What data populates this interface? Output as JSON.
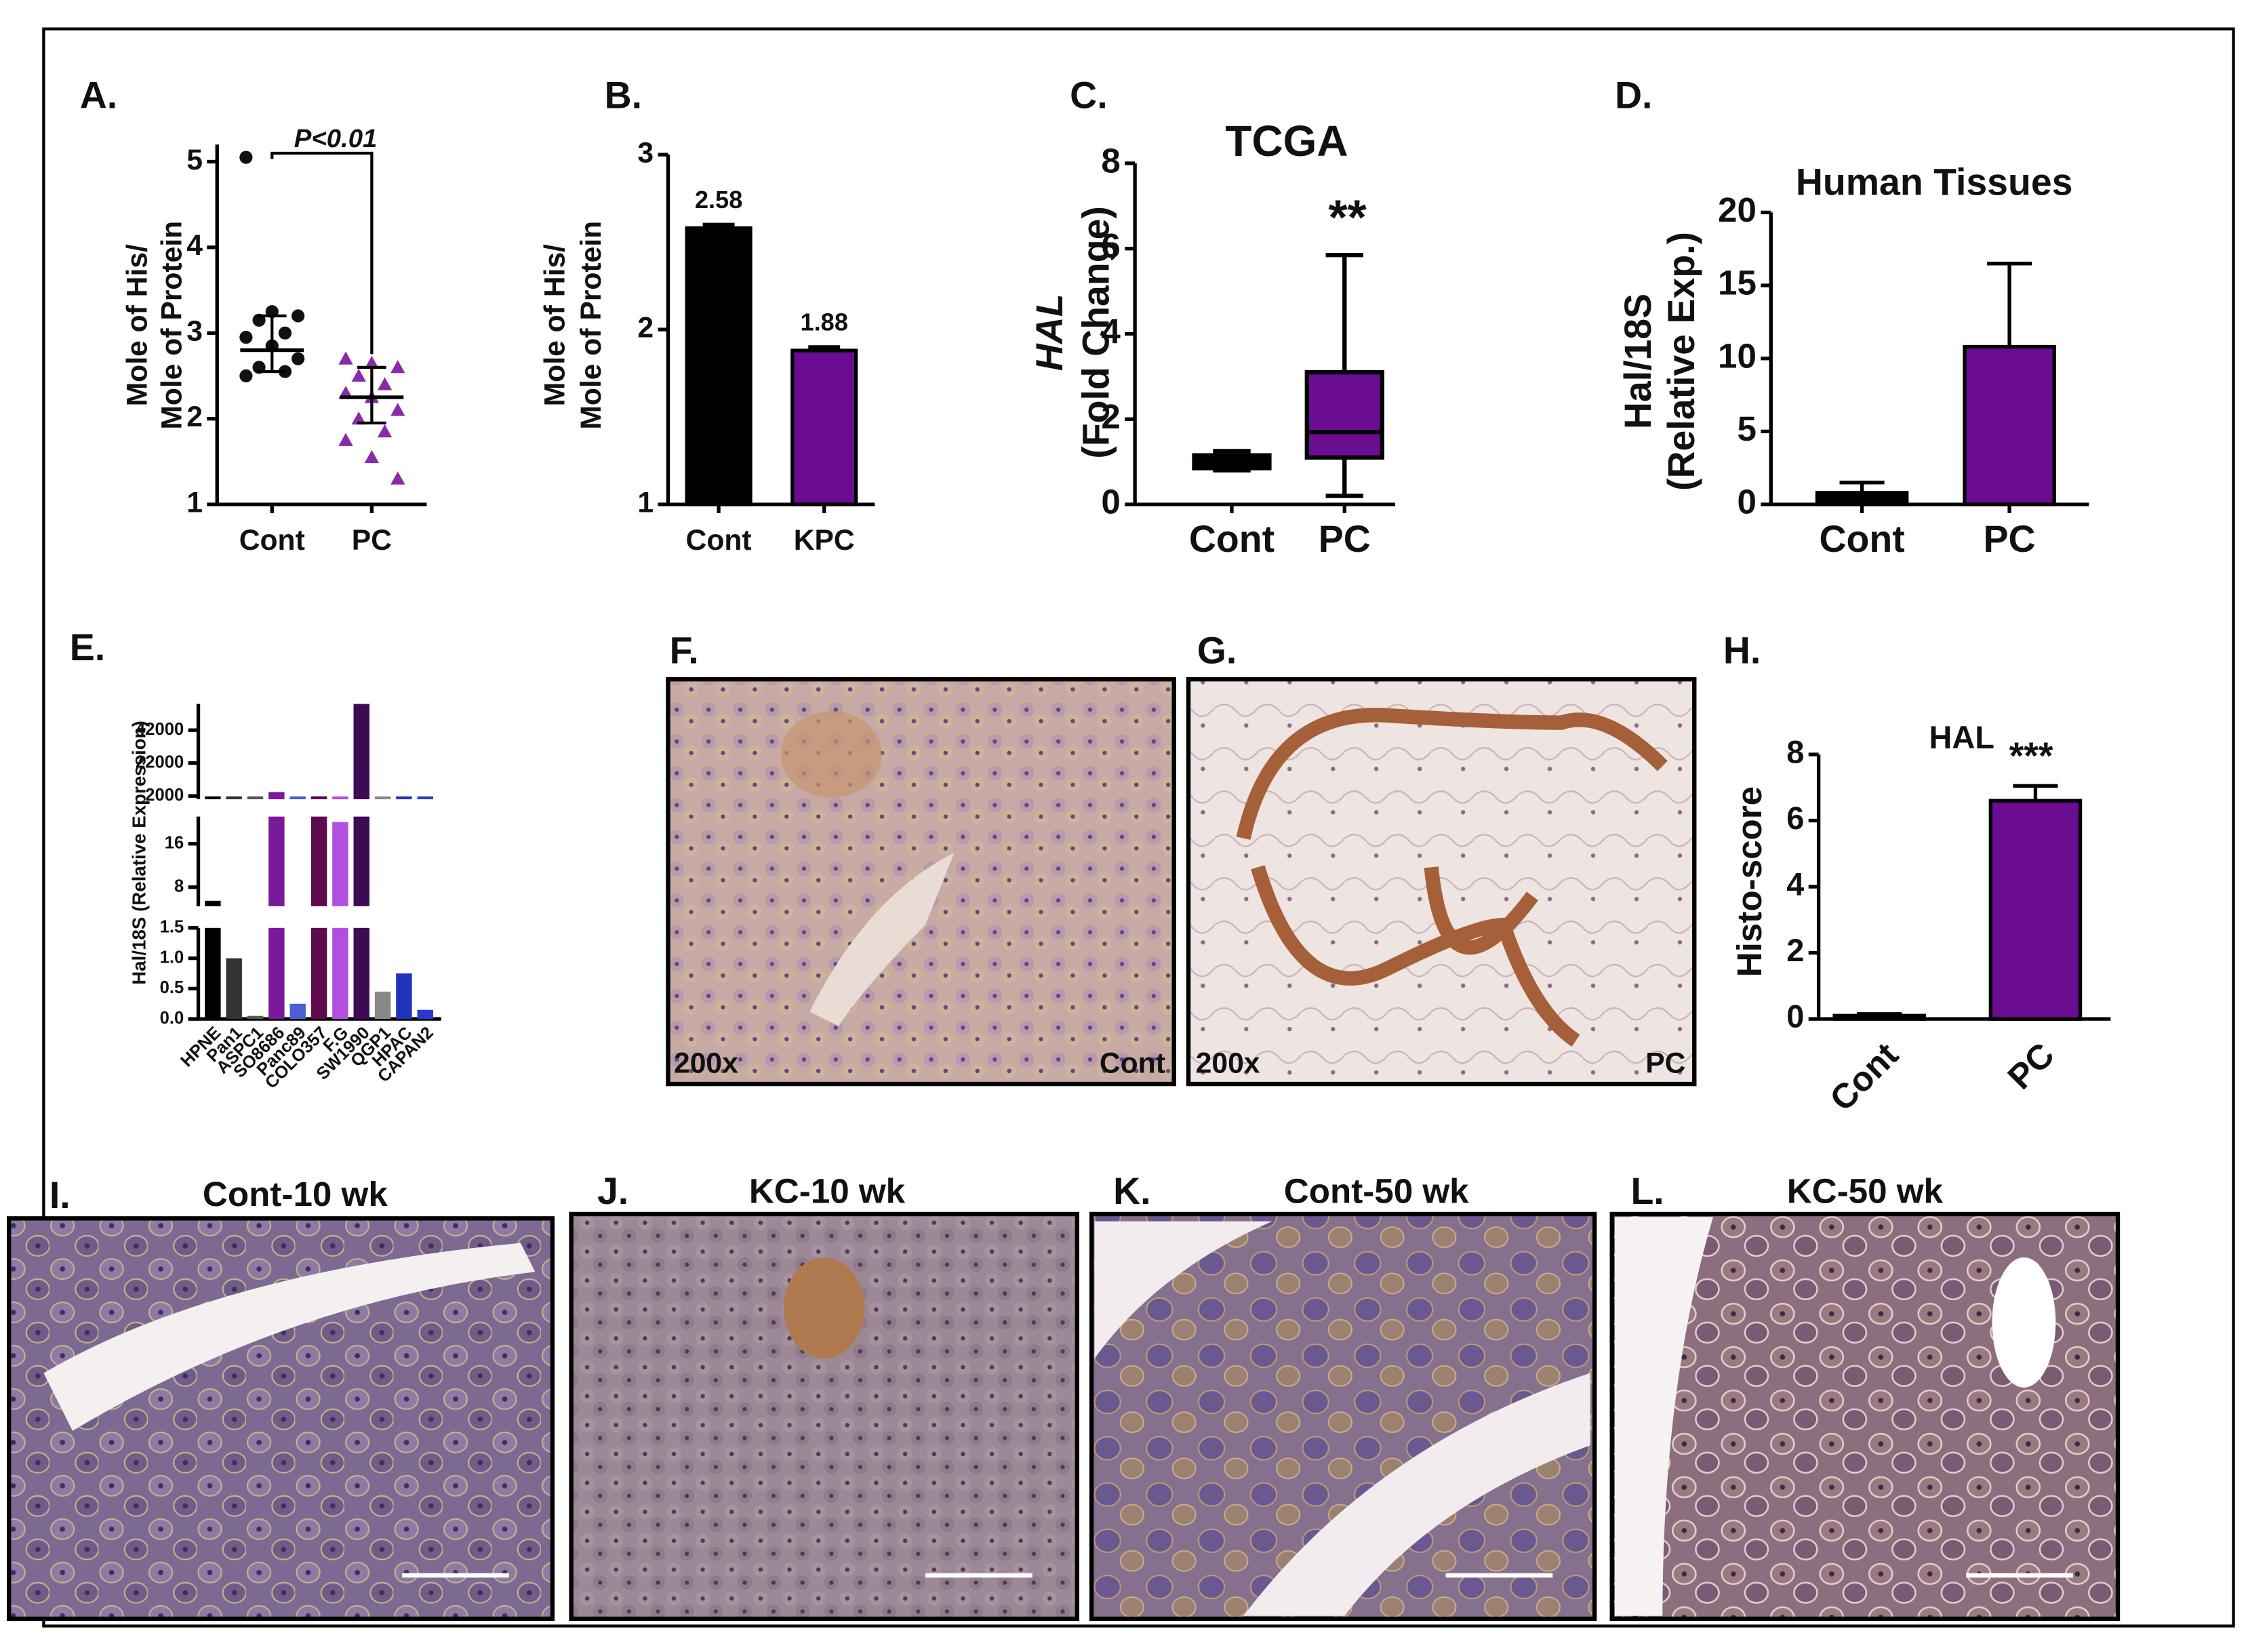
{
  "chart_data": [
    {
      "type": "dot",
      "panel": "A.",
      "ylabel": [
        "Mole of His/",
        "Mole of Protein"
      ],
      "annotation": "P<0.01",
      "categories": [
        "Cont",
        "PC"
      ],
      "colors": [
        "#111111",
        "#8a2aa8"
      ],
      "markers": [
        "circle",
        "triangle"
      ],
      "values": [
        [
          5.05,
          3.25,
          3.2,
          3.15,
          3.0,
          2.95,
          2.85,
          2.7,
          2.6,
          2.55,
          2.5
        ],
        [
          2.7,
          2.65,
          2.6,
          2.5,
          2.4,
          2.3,
          2.25,
          2.1,
          2.0,
          1.85,
          1.75,
          1.55,
          1.3
        ]
      ],
      "medians": [
        2.8,
        2.25
      ],
      "errors_low": [
        2.55,
        1.95
      ],
      "errors_high": [
        3.2,
        2.6
      ],
      "ylim": [
        1,
        5.2
      ],
      "yticks": [
        1,
        2,
        3,
        4,
        5
      ]
    },
    {
      "type": "bar",
      "panel": "B.",
      "ylabel": [
        "Mole of His/",
        "Mole of Protein"
      ],
      "categories": [
        "Cont",
        "KPC"
      ],
      "values": [
        2.58,
        1.88
      ],
      "errors": [
        0.02,
        0.02
      ],
      "colors": [
        "#000000",
        "#6a0d91"
      ],
      "show_values": true,
      "ylim": [
        1,
        3
      ],
      "yticks": [
        1,
        2,
        3
      ]
    },
    {
      "type": "box",
      "panel": "C.",
      "title": "TCGA",
      "ylabel": [
        "HAL",
        "(Fold Change)"
      ],
      "annotation": "**",
      "categories": [
        "Cont",
        "PC"
      ],
      "colors": [
        "#000000",
        "#6a0d91"
      ],
      "min": [
        0.8,
        0.2
      ],
      "q1": [
        0.85,
        1.1
      ],
      "median": [
        1.0,
        1.7
      ],
      "q3": [
        1.15,
        3.1
      ],
      "max": [
        1.25,
        5.85
      ],
      "ylim": [
        0,
        8
      ],
      "yticks": [
        0,
        2,
        4,
        6,
        8
      ]
    },
    {
      "type": "bar",
      "panel": "D.",
      "title": "Human Tissues",
      "ylabel": [
        "Hal/18S",
        "(Relative Exp.)"
      ],
      "categories": [
        "Cont",
        "PC"
      ],
      "values": [
        0.8,
        10.8
      ],
      "errors": [
        0.7,
        5.7
      ],
      "colors": [
        "#000000",
        "#6a0d91"
      ],
      "ylim": [
        0,
        20
      ],
      "yticks": [
        0,
        5,
        10,
        15,
        20
      ]
    },
    {
      "type": "bar",
      "panel": "E.",
      "ylabel": [
        "Hal/18S (Relative Expression)"
      ],
      "categories": [
        "HPNE",
        "Pan1",
        "ASPC1",
        "SO8686",
        "Panc89",
        "COLO357",
        "F.G",
        "SW1990",
        "QGP1",
        "HPAC",
        "CAPAN2"
      ],
      "values": [
        5.5,
        1.0,
        0.05,
        4400,
        0.25,
        1800,
        20,
        58000,
        0.45,
        0.75,
        0.15
      ],
      "colors": [
        "#000000",
        "#333333",
        "#555555",
        "#7a1a9a",
        "#4b5ed6",
        "#5e0a4e",
        "#b34fe0",
        "#3d0a55",
        "#888888",
        "#2233bb",
        "#2a3acc"
      ],
      "segments": [
        {
          "ylim": [
            0,
            1.5
          ],
          "yticks": [
            {
              "value": 0,
              "label": "0.0"
            },
            0.5,
            {
              "value": 1,
              "label": "1.0"
            },
            1.5
          ]
        },
        {
          "ylim": [
            4.5,
            21
          ],
          "yticks": [
            8,
            16
          ]
        },
        {
          "ylim": [
            0,
            58000
          ],
          "yticks": [
            2000,
            22000,
            42000
          ]
        }
      ]
    },
    {
      "type": "bar",
      "panel": "H.",
      "title": "HAL",
      "ylabel": [
        "Histo-score"
      ],
      "annotation": "***",
      "categories": [
        "Cont",
        "PC"
      ],
      "values": [
        0.1,
        6.6
      ],
      "errors": [
        0.05,
        0.45
      ],
      "colors": [
        "#000000",
        "#6a0d91"
      ],
      "ylim": [
        0,
        8
      ],
      "yticks": [
        0,
        2,
        4,
        6,
        8
      ]
    }
  ],
  "panels": [
    {
      "letter": "F.",
      "magnification": "200x",
      "label": "Cont"
    },
    {
      "letter": "G.",
      "magnification": "200x",
      "label": "PC"
    },
    {
      "letter": "I.",
      "title": "Cont-10 wk"
    },
    {
      "letter": "J.",
      "title": "KC-10 wk"
    },
    {
      "letter": "K.",
      "title": "Cont-50 wk"
    },
    {
      "letter": "L.",
      "title": "KC-50 wk"
    }
  ]
}
